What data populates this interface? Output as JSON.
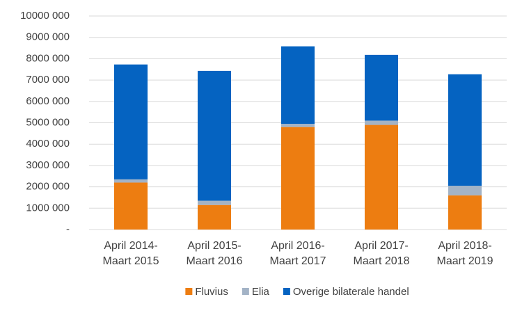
{
  "chart_data": {
    "type": "stacked_bar",
    "categories": [
      "April 2014-\nMaart 2015",
      "April 2015-\nMaart 2016",
      "April 2016-\nMaart 2017",
      "April 2017-\nMaart 2018",
      "April 2018-\nMaart 2019"
    ],
    "series": [
      {
        "name": "Fluvius",
        "color": "#ed7d11",
        "values": [
          2200000,
          1150000,
          4800000,
          4900000,
          1600000
        ]
      },
      {
        "name": "Elia",
        "color": "#a3b3c6",
        "values": [
          150000,
          200000,
          150000,
          200000,
          450000
        ]
      },
      {
        "name": "Overige bilaterale handel",
        "color": "#0563c1",
        "values": [
          5380000,
          6080000,
          3630000,
          3080000,
          5220000
        ]
      }
    ],
    "ylim": [
      0,
      10000000
    ],
    "yticks": [
      {
        "value": 0,
        "label": "-"
      },
      {
        "value": 1000000,
        "label": "1000 000"
      },
      {
        "value": 2000000,
        "label": "2000 000"
      },
      {
        "value": 3000000,
        "label": "3000 000"
      },
      {
        "value": 4000000,
        "label": "4000 000"
      },
      {
        "value": 5000000,
        "label": "5000 000"
      },
      {
        "value": 6000000,
        "label": "6000 000"
      },
      {
        "value": 7000000,
        "label": "7000 000"
      },
      {
        "value": 8000000,
        "label": "8000 000"
      },
      {
        "value": 9000000,
        "label": "9000 000"
      },
      {
        "value": 10000000,
        "label": "10000 000"
      }
    ],
    "grid": true,
    "legend": "bottom"
  }
}
